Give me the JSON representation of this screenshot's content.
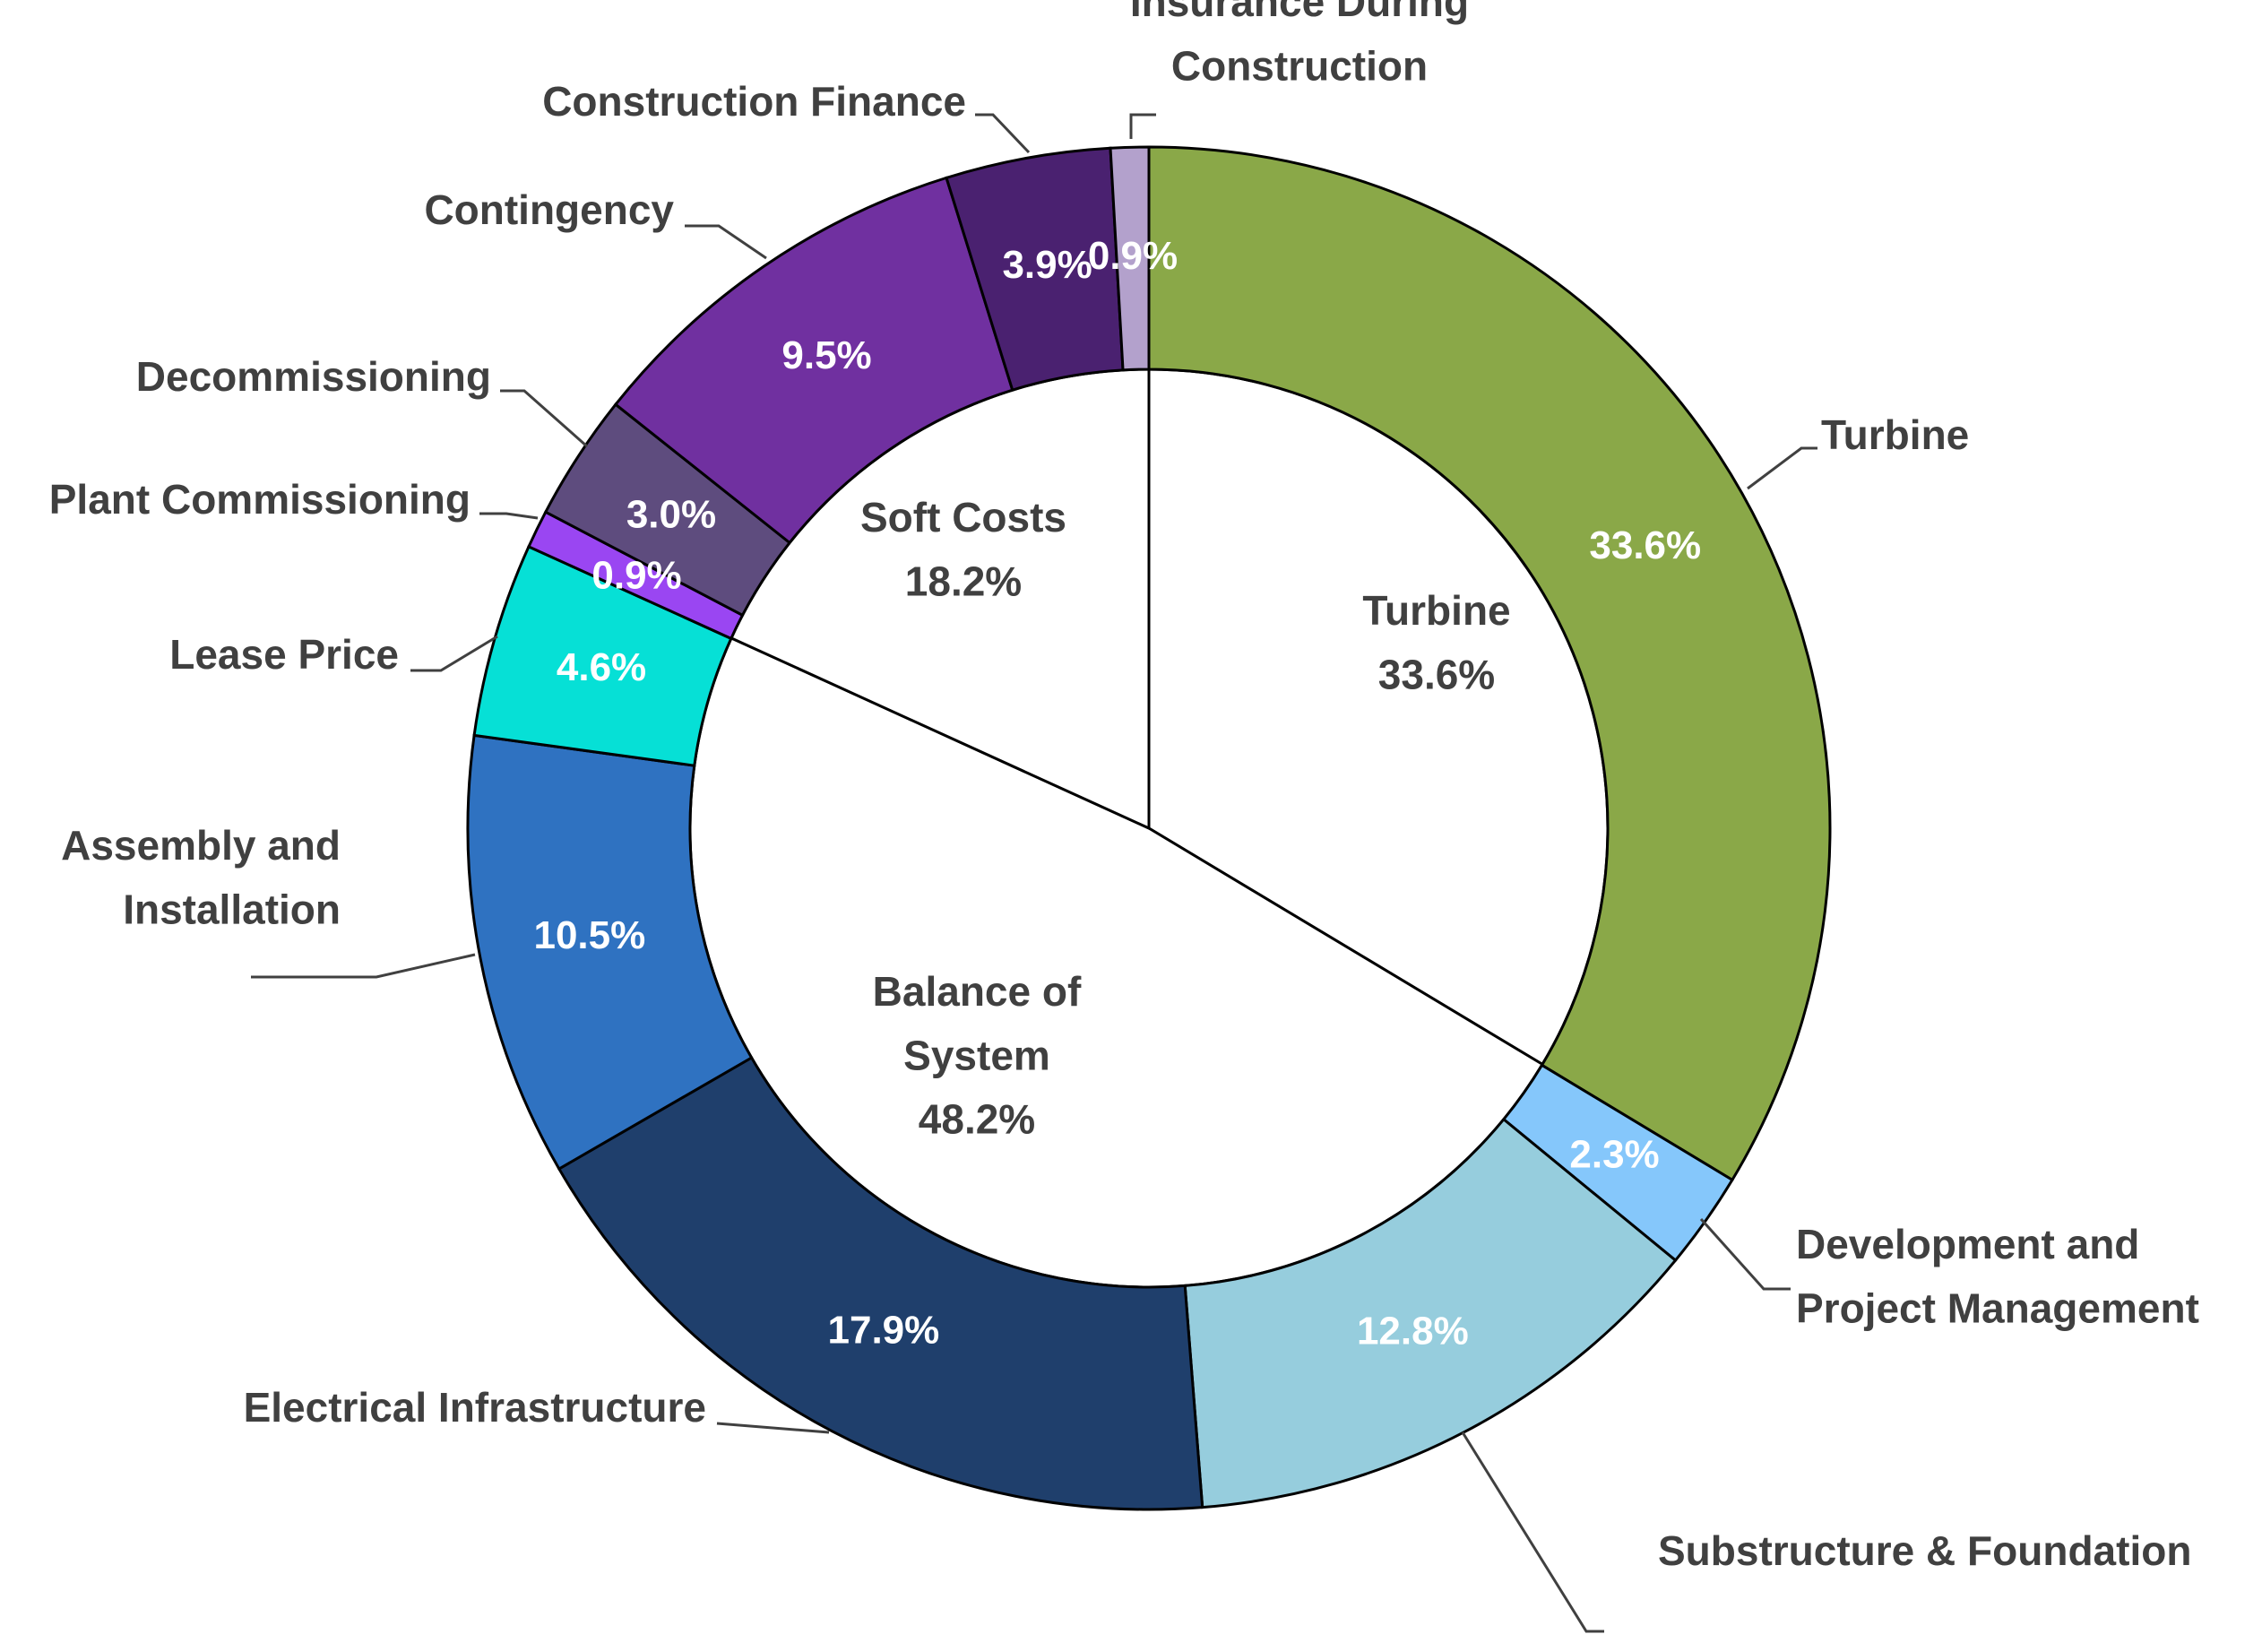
{
  "chart_data": {
    "type": "pie",
    "title": "",
    "outer_ring": {
      "categories": [
        "Turbine",
        "Development and Project Management",
        "Substructure & Foundation",
        "Electrical Infrastructure",
        "Assembly and Installation",
        "Lease Price",
        "Plant Commissioning",
        "Decommissioning",
        "Contingency",
        "Construction Finance",
        "Insurance During Construction"
      ],
      "values": [
        33.6,
        2.3,
        12.8,
        17.9,
        10.5,
        4.6,
        0.9,
        3.0,
        9.5,
        3.9,
        0.9
      ],
      "value_labels": [
        "33.6%",
        "2.3%",
        "12.8%",
        "17.9%",
        "10.5%",
        "4.6%",
        "0.9%",
        "3.0%",
        "9.5%",
        "3.9%",
        "0.9%"
      ],
      "label_lines": [
        [
          "Turbine"
        ],
        [
          "Development and",
          "Project Management"
        ],
        [
          "Substructure & Foundation"
        ],
        [
          "Electrical Infrastructure"
        ],
        [
          "Assembly and",
          "Installation"
        ],
        [
          "Lease Price"
        ],
        [
          "Plant Commissioning"
        ],
        [
          "Decommissioning"
        ],
        [
          "Contingency"
        ],
        [
          "Construction Finance"
        ],
        [
          "Insurance During",
          "Construction"
        ]
      ],
      "colors": [
        "#8aa848",
        "#85c7fb",
        "#96cddd",
        "#1f3f6c",
        "#2f72c1",
        "#06e0d6",
        "#9a46f2",
        "#5e4c7e",
        "#7030a0",
        "#4a2170",
        "#b3a1cc"
      ]
    },
    "inner_pie": {
      "categories": [
        "Turbine",
        "Balance of System",
        "Soft Costs"
      ],
      "values": [
        33.6,
        48.2,
        18.2
      ],
      "label_lines": [
        [
          "Turbine",
          "33.6%"
        ],
        [
          "Balance of",
          "System",
          "48.2%"
        ],
        [
          "Soft Costs",
          "18.2%"
        ]
      ]
    }
  }
}
